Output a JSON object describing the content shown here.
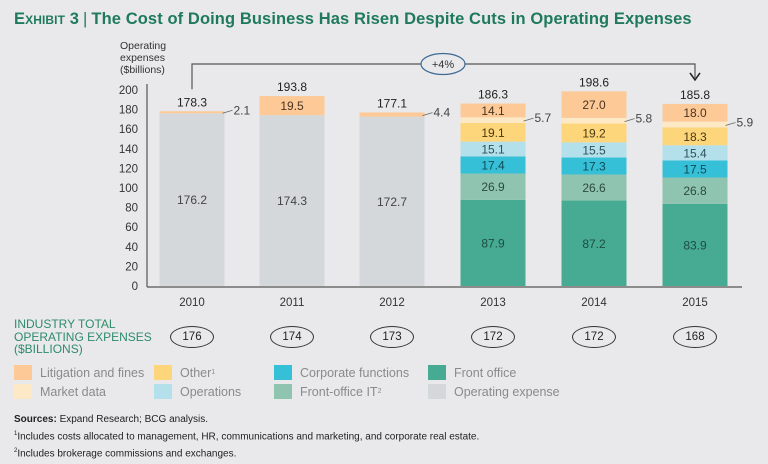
{
  "title": {
    "exhibit": "Exhibit 3",
    "separator": "|",
    "text": "The Cost of Doing Business Has Risen Despite Cuts in Operating Expenses"
  },
  "growth_annotation": "+4%",
  "totals": {
    "label_lines": [
      "INDUSTRY TOTAL",
      "OPERATING EXPENSES",
      "($BILLIONS)"
    ],
    "values": [
      "176",
      "174",
      "173",
      "172",
      "172",
      "168"
    ]
  },
  "legend": [
    {
      "key": "litigation",
      "label": "Litigation and fines",
      "sup": "",
      "color": "#fcc997"
    },
    {
      "key": "market",
      "label": "Market data",
      "sup": "",
      "color": "#fde9c6"
    },
    {
      "key": "other",
      "label": "Other",
      "sup": "1",
      "color": "#fdd57a"
    },
    {
      "key": "operations",
      "label": "Operations",
      "sup": "",
      "color": "#b3e0ea"
    },
    {
      "key": "corporate",
      "label": "Corporate functions",
      "sup": "",
      "color": "#35c0d7"
    },
    {
      "key": "fo_it",
      "label": "Front-office IT",
      "sup": "2",
      "color": "#8fc4b0"
    },
    {
      "key": "front",
      "label": "Front office",
      "sup": "",
      "color": "#46ab92"
    },
    {
      "key": "opex",
      "label": "Operating expense",
      "sup": "",
      "color": "#d4d8db"
    }
  ],
  "notes": {
    "sources_label": "Sources:",
    "sources_text": " Expand Research; BCG analysis.",
    "footnote1_mark": "1",
    "footnote1": "Includes costs allocated to management, HR, communications and marketing, and corporate real estate.",
    "footnote2_mark": "2",
    "footnote2": "Includes brokerage commissions and exchanges."
  },
  "chart_data": {
    "type": "bar",
    "stacked": true,
    "title": "The Cost of Doing Business Has Risen Despite Cuts in Operating Expenses",
    "ylabel": "Operating expenses ($billions)",
    "ylabel_lines": [
      "Operating",
      "expenses",
      "($billions)"
    ],
    "xlabel": "",
    "ylim": [
      0,
      200
    ],
    "yticks": [
      0,
      20,
      40,
      60,
      80,
      100,
      120,
      140,
      160,
      180,
      200
    ],
    "grid": false,
    "legend_position": "bottom",
    "categories": [
      "2010",
      "2011",
      "2012",
      "2013",
      "2014",
      "2015"
    ],
    "totals": [
      178.3,
      193.8,
      177.1,
      186.3,
      198.6,
      185.8
    ],
    "series": [
      {
        "key": "opex",
        "name": "Operating expense",
        "color": "#d4d8db",
        "values": [
          176.2,
          174.3,
          172.7,
          null,
          null,
          null
        ]
      },
      {
        "key": "front",
        "name": "Front office",
        "color": "#46ab92",
        "values": [
          null,
          null,
          null,
          87.9,
          87.2,
          83.9
        ]
      },
      {
        "key": "fo_it",
        "name": "Front-office IT",
        "color": "#8fc4b0",
        "values": [
          null,
          null,
          null,
          26.9,
          26.6,
          26.8
        ]
      },
      {
        "key": "corporate",
        "name": "Corporate functions",
        "color": "#35c0d7",
        "values": [
          null,
          null,
          null,
          17.4,
          17.3,
          17.5
        ]
      },
      {
        "key": "operations",
        "name": "Operations",
        "color": "#b3e0ea",
        "values": [
          null,
          null,
          null,
          15.1,
          15.5,
          15.4
        ]
      },
      {
        "key": "other",
        "name": "Other",
        "color": "#fdd57a",
        "values": [
          null,
          null,
          null,
          19.1,
          19.2,
          18.3
        ]
      },
      {
        "key": "market",
        "name": "Market data",
        "color": "#fde9c6",
        "values": [
          null,
          null,
          null,
          5.7,
          5.8,
          5.9
        ]
      },
      {
        "key": "litigation",
        "name": "Litigation and fines",
        "color": "#fcc997",
        "values": [
          2.1,
          19.5,
          4.4,
          14.1,
          27.0,
          18.0
        ]
      }
    ],
    "annotations": [
      {
        "text": "+4%",
        "from": "2010",
        "to": "2015",
        "type": "bracket-arrow"
      }
    ]
  }
}
